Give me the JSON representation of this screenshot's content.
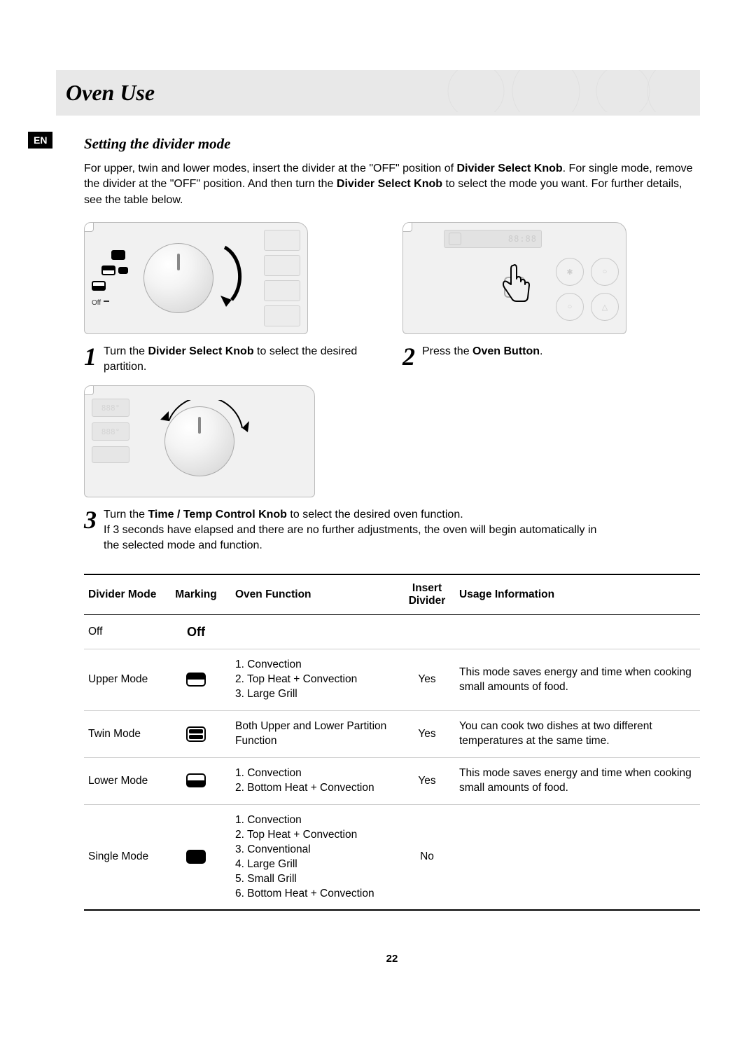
{
  "lang_badge": "EN",
  "header": {
    "title": "Oven Use"
  },
  "section": {
    "title": "Setting the divider mode",
    "intro_html": "For upper, twin and lower modes, insert the divider at the \"OFF\" position of <b>Divider Select Knob</b>. For single mode, remove the divider at the \"OFF\" position. And then turn the <b>Divider Select Knob</b> to select the mode you want. For further details, see the table below."
  },
  "steps": {
    "s1": {
      "num": "1",
      "text_html": "Turn the <b>Divider Select Knob</b> to select the desired partition."
    },
    "s2": {
      "num": "2",
      "text_html": "Press the <b>Oven Button</b>."
    },
    "s3": {
      "num": "3",
      "text_html": "Turn the <b>Time / Temp Control Knob</b> to select the desired oven function.<br>If 3 seconds have elapsed and there are no further adjustments, the oven will begin automatically in the selected mode and function."
    }
  },
  "diagrams": {
    "off_label": "Off",
    "digital_readout": "88:88",
    "temp_seg_a": "888°",
    "temp_seg_b": "888°"
  },
  "table": {
    "headers": {
      "mode": "Divider Mode",
      "marking": "Marking",
      "function": "Oven Function",
      "insert": "Insert Divider",
      "usage": "Usage Information"
    },
    "rows": [
      {
        "mode": "Off",
        "marking_label": "Off",
        "marking_type": "text",
        "functions": [],
        "insert": "",
        "usage": ""
      },
      {
        "mode": "Upper Mode",
        "marking_type": "upper",
        "functions": [
          "1. Convection",
          "2. Top Heat + Convection",
          "3. Large Grill"
        ],
        "insert": "Yes",
        "usage": "This mode saves energy and time when cooking small amounts of food."
      },
      {
        "mode": "Twin Mode",
        "marking_type": "twin",
        "functions": [
          "Both Upper and Lower Partition Function"
        ],
        "insert": "Yes",
        "usage": "You can cook two dishes at two different temperatures at the same time."
      },
      {
        "mode": "Lower Mode",
        "marking_type": "lower",
        "functions": [
          "1. Convection",
          "2. Bottom Heat + Convection"
        ],
        "insert": "Yes",
        "usage": "This mode saves energy and time when cooking small amounts of food."
      },
      {
        "mode": "Single Mode",
        "marking_type": "solid",
        "functions": [
          "1. Convection",
          "2. Top Heat + Convection",
          "3. Conventional",
          "4. Large Grill",
          "5. Small Grill",
          "6. Bottom Heat + Convection"
        ],
        "insert": "No",
        "usage": ""
      }
    ]
  },
  "page_number": "22",
  "colors": {
    "header_bg": "#e8e8e8",
    "text": "#000000",
    "panel_bg": "#f1f1f1",
    "border": "#bbbbbb"
  }
}
